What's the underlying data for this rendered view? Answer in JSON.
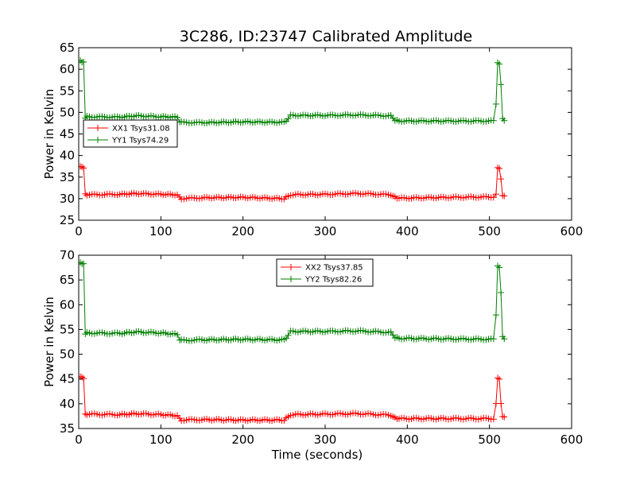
{
  "title": "3C286, ID:23747 Calibrated Amplitude",
  "chart_data": [
    {
      "type": "line",
      "ylabel": "Power in Kelvin",
      "xlabel": "",
      "xlim": [
        0,
        600
      ],
      "ylim": [
        25,
        65
      ],
      "xticks": [
        0,
        100,
        200,
        300,
        400,
        500,
        600
      ],
      "yticks": [
        25,
        30,
        35,
        40,
        45,
        50,
        55,
        60,
        65
      ],
      "legend_position": "center-left",
      "series": [
        {
          "name": "XX1 Tsys31.08",
          "color": "#ff0000",
          "points": [
            [
              2,
              37.5
            ],
            [
              4,
              37.3
            ],
            [
              6,
              37.2
            ],
            [
              8,
              31
            ],
            [
              10,
              30.9
            ],
            [
              50,
              31
            ],
            [
              70,
              31.2
            ],
            [
              100,
              31
            ],
            [
              120,
              30.9
            ],
            [
              123,
              30.2
            ],
            [
              125,
              30
            ],
            [
              150,
              30.2
            ],
            [
              200,
              30.3
            ],
            [
              250,
              30
            ],
            [
              255,
              30.6
            ],
            [
              258,
              30.9
            ],
            [
              300,
              31
            ],
            [
              340,
              31.2
            ],
            [
              380,
              30.9
            ],
            [
              385,
              30.3
            ],
            [
              390,
              30.1
            ],
            [
              450,
              30.3
            ],
            [
              505,
              30.4
            ],
            [
              508,
              31
            ],
            [
              510,
              37.2
            ],
            [
              512,
              37
            ],
            [
              514,
              34.5
            ],
            [
              516,
              30.8
            ],
            [
              518,
              30.5
            ]
          ]
        },
        {
          "name": "YY1 Tsys74.29",
          "color": "#008000",
          "points": [
            [
              2,
              62
            ],
            [
              4,
              61.7
            ],
            [
              6,
              61.6
            ],
            [
              8,
              48.8
            ],
            [
              10,
              49
            ],
            [
              50,
              48.9
            ],
            [
              70,
              49.2
            ],
            [
              100,
              49
            ],
            [
              120,
              48.9
            ],
            [
              123,
              47.9
            ],
            [
              125,
              47.7
            ],
            [
              150,
              47.6
            ],
            [
              200,
              47.8
            ],
            [
              250,
              47.7
            ],
            [
              255,
              48.5
            ],
            [
              258,
              49.3
            ],
            [
              300,
              49.3
            ],
            [
              340,
              49.4
            ],
            [
              380,
              49.2
            ],
            [
              385,
              48.2
            ],
            [
              390,
              48
            ],
            [
              450,
              48
            ],
            [
              505,
              48
            ],
            [
              508,
              52
            ],
            [
              510,
              61.5
            ],
            [
              512,
              61.2
            ],
            [
              514,
              56.5
            ],
            [
              516,
              48.5
            ],
            [
              518,
              48.2
            ]
          ]
        }
      ]
    },
    {
      "type": "line",
      "ylabel": "Power in Kelvin",
      "xlabel": "Time (seconds)",
      "xlim": [
        0,
        600
      ],
      "ylim": [
        35,
        70
      ],
      "xticks": [
        0,
        100,
        200,
        300,
        400,
        500,
        600
      ],
      "yticks": [
        35,
        40,
        45,
        50,
        55,
        60,
        65,
        70
      ],
      "legend_position": "top-center",
      "series": [
        {
          "name": "XX2 Tsys37.85",
          "color": "#ff0000",
          "points": [
            [
              2,
              45.5
            ],
            [
              4,
              45.3
            ],
            [
              6,
              45.2
            ],
            [
              8,
              37.8
            ],
            [
              10,
              37.9
            ],
            [
              50,
              37.8
            ],
            [
              70,
              38
            ],
            [
              100,
              37.8
            ],
            [
              120,
              37.6
            ],
            [
              123,
              36.9
            ],
            [
              125,
              36.7
            ],
            [
              150,
              36.8
            ],
            [
              200,
              36.7
            ],
            [
              250,
              36.7
            ],
            [
              255,
              37.4
            ],
            [
              258,
              37.8
            ],
            [
              300,
              37.9
            ],
            [
              340,
              38
            ],
            [
              380,
              37.7
            ],
            [
              385,
              37.1
            ],
            [
              390,
              37
            ],
            [
              450,
              37
            ],
            [
              505,
              37
            ],
            [
              508,
              40
            ],
            [
              510,
              45.2
            ],
            [
              512,
              45
            ],
            [
              514,
              40
            ],
            [
              516,
              37.5
            ],
            [
              518,
              37.2
            ]
          ]
        },
        {
          "name": "YY2 Tsys82.26",
          "color": "#008000",
          "points": [
            [
              2,
              68.5
            ],
            [
              4,
              68.3
            ],
            [
              6,
              68.2
            ],
            [
              8,
              54.2
            ],
            [
              10,
              54.3
            ],
            [
              50,
              54.2
            ],
            [
              70,
              54.5
            ],
            [
              100,
              54.3
            ],
            [
              120,
              54
            ],
            [
              123,
              53
            ],
            [
              125,
              52.8
            ],
            [
              150,
              52.9
            ],
            [
              200,
              53
            ],
            [
              250,
              52.9
            ],
            [
              255,
              53.8
            ],
            [
              258,
              54.6
            ],
            [
              300,
              54.6
            ],
            [
              340,
              54.7
            ],
            [
              380,
              54.4
            ],
            [
              385,
              53.4
            ],
            [
              390,
              53.2
            ],
            [
              450,
              53.1
            ],
            [
              505,
              53
            ],
            [
              508,
              58
            ],
            [
              510,
              67.8
            ],
            [
              512,
              67.5
            ],
            [
              514,
              62.5
            ],
            [
              516,
              53.5
            ],
            [
              518,
              53.2
            ]
          ]
        }
      ]
    }
  ]
}
